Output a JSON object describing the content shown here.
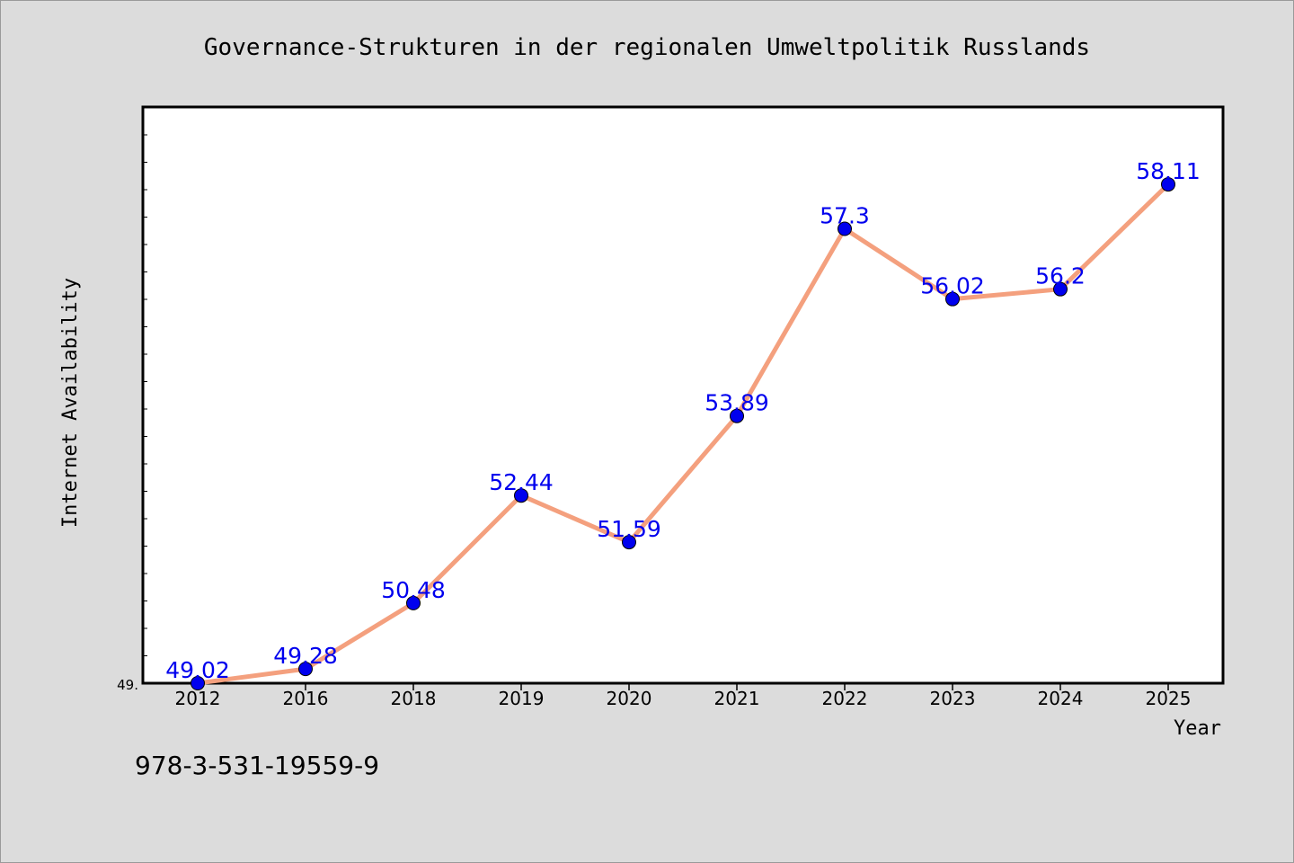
{
  "chart_data": {
    "type": "line",
    "title": "Governance-Strukturen in der regionalen Umweltpolitik Russlands",
    "xlabel": "Year",
    "ylabel": "Internet Availability",
    "categories": [
      "2012",
      "2016",
      "2018",
      "2019",
      "2020",
      "2021",
      "2022",
      "2023",
      "2024",
      "2025"
    ],
    "series": [
      {
        "values": [
          49.02,
          49.28,
          50.48,
          52.44,
          51.59,
          53.89,
          57.3,
          56.02,
          56.2,
          58.11
        ],
        "labels": [
          "49.02",
          "49.28",
          "50.48",
          "52.44",
          "51.59",
          "53.89",
          "57.3",
          "56.02",
          "56.2",
          "58.11"
        ]
      }
    ],
    "y_tick_label": "49.",
    "ylim": [
      49.02,
      59.52
    ],
    "grid": false,
    "colors": {
      "line": "#f4a07e",
      "marker": "#0000ee",
      "label": "#0000ee",
      "plot_bg": "#ffffff",
      "page_bg": "#dcdcdc"
    }
  },
  "footer": {
    "isbn": "978-3-531-19559-9"
  }
}
